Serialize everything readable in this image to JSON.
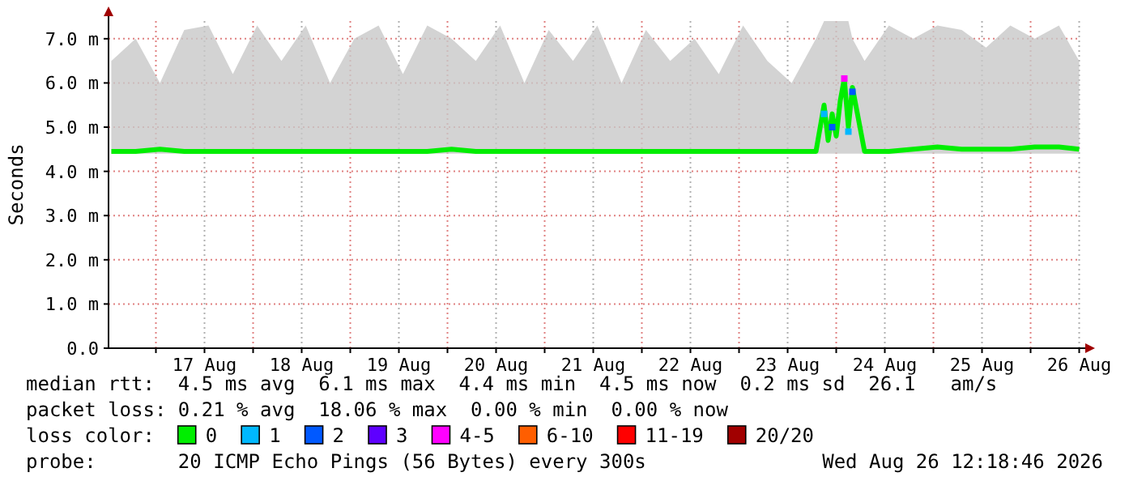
{
  "chart_data": {
    "type": "line",
    "ylabel": "Seconds",
    "legend_title": "loss color:",
    "legend": "bottom",
    "grid": true,
    "marker": "none",
    "line_style": "solid",
    "xlim": [
      "2026-08-16T12:18",
      "2026-08-26T12:18"
    ],
    "xticks": [
      {
        "value": "2026-08-17T00:00",
        "label": null
      },
      {
        "value": "2026-08-17T12:00",
        "label": "17 Aug"
      },
      {
        "value": "2026-08-18T00:00",
        "label": null
      },
      {
        "value": "2026-08-18T12:00",
        "label": "18 Aug"
      },
      {
        "value": "2026-08-19T00:00",
        "label": null
      },
      {
        "value": "2026-08-19T12:00",
        "label": "19 Aug"
      },
      {
        "value": "2026-08-20T00:00",
        "label": null
      },
      {
        "value": "2026-08-20T12:00",
        "label": "20 Aug"
      },
      {
        "value": "2026-08-21T00:00",
        "label": null
      },
      {
        "value": "2026-08-21T12:00",
        "label": "21 Aug"
      },
      {
        "value": "2026-08-22T00:00",
        "label": null
      },
      {
        "value": "2026-08-22T12:00",
        "label": "22 Aug"
      },
      {
        "value": "2026-08-23T00:00",
        "label": null
      },
      {
        "value": "2026-08-23T12:00",
        "label": "23 Aug"
      },
      {
        "value": "2026-08-24T00:00",
        "label": null
      },
      {
        "value": "2026-08-24T12:00",
        "label": "24 Aug"
      },
      {
        "value": "2026-08-25T00:00",
        "label": null
      },
      {
        "value": "2026-08-25T12:00",
        "label": "25 Aug"
      },
      {
        "value": "2026-08-26T00:00",
        "label": null
      },
      {
        "value": "2026-08-26T12:00",
        "label": "26 Aug"
      }
    ],
    "ylim": [
      0,
      7.4
    ],
    "yticks": [
      {
        "value": 0,
        "label": "0.0"
      },
      {
        "value": 1,
        "label": "1.0 m"
      },
      {
        "value": 2,
        "label": "2.0 m"
      },
      {
        "value": 3,
        "label": "3.0 m"
      },
      {
        "value": 4,
        "label": "4.0 m"
      },
      {
        "value": 5,
        "label": "5.0 m"
      },
      {
        "value": 6,
        "label": "6.0 m"
      },
      {
        "value": 7,
        "label": "7.0 m"
      }
    ],
    "x": [
      "2026-08-16T13:00",
      "2026-08-16T19:00",
      "2026-08-17T01:00",
      "2026-08-17T07:00",
      "2026-08-17T13:00",
      "2026-08-17T19:00",
      "2026-08-18T01:00",
      "2026-08-18T07:00",
      "2026-08-18T13:00",
      "2026-08-18T19:00",
      "2026-08-19T01:00",
      "2026-08-19T07:00",
      "2026-08-19T13:00",
      "2026-08-19T19:00",
      "2026-08-20T01:00",
      "2026-08-20T07:00",
      "2026-08-20T13:00",
      "2026-08-20T19:00",
      "2026-08-21T01:00",
      "2026-08-21T07:00",
      "2026-08-21T13:00",
      "2026-08-21T19:00",
      "2026-08-22T01:00",
      "2026-08-22T07:00",
      "2026-08-22T13:00",
      "2026-08-22T19:00",
      "2026-08-23T01:00",
      "2026-08-23T07:00",
      "2026-08-23T13:00",
      "2026-08-23T19:00",
      "2026-08-23T21:00",
      "2026-08-23T22:00",
      "2026-08-23T23:00",
      "2026-08-24T00:00",
      "2026-08-24T01:00",
      "2026-08-24T02:00",
      "2026-08-24T03:00",
      "2026-08-24T04:00",
      "2026-08-24T07:00",
      "2026-08-24T13:00",
      "2026-08-24T19:00",
      "2026-08-25T01:00",
      "2026-08-25T07:00",
      "2026-08-25T13:00",
      "2026-08-25T19:00",
      "2026-08-26T01:00",
      "2026-08-26T07:00",
      "2026-08-26T12:00"
    ],
    "series": [
      {
        "name": "0",
        "color": "#00ee00",
        "values": [
          4.45,
          4.45,
          4.5,
          4.45,
          4.45,
          4.45,
          4.45,
          4.45,
          4.45,
          4.45,
          4.45,
          4.45,
          4.45,
          4.45,
          4.5,
          4.45,
          4.45,
          4.45,
          4.45,
          4.45,
          4.45,
          4.45,
          4.45,
          4.45,
          4.45,
          4.45,
          4.45,
          4.45,
          4.45,
          4.45,
          5.5,
          4.7,
          5.3,
          4.8,
          5.6,
          6.1,
          5.0,
          5.9,
          4.45,
          4.45,
          4.5,
          4.55,
          4.5,
          4.5,
          4.5,
          4.55,
          4.55,
          4.5
        ],
        "lower": [
          4.4,
          4.4,
          4.4,
          4.4,
          4.4,
          4.4,
          4.4,
          4.4,
          4.4,
          4.4,
          4.4,
          4.4,
          4.4,
          4.4,
          4.4,
          4.4,
          4.4,
          4.4,
          4.4,
          4.4,
          4.4,
          4.4,
          4.4,
          4.4,
          4.4,
          4.4,
          4.4,
          4.4,
          4.4,
          4.4,
          4.4,
          4.4,
          4.4,
          4.4,
          4.4,
          4.4,
          4.4,
          4.4,
          4.4,
          4.4,
          4.4,
          4.4,
          4.4,
          4.4,
          4.4,
          4.4,
          4.4,
          4.4
        ],
        "upper": [
          6.5,
          7.0,
          6.0,
          7.2,
          7.3,
          6.2,
          7.3,
          6.5,
          7.3,
          6.0,
          7.0,
          7.3,
          6.2,
          7.3,
          7.0,
          6.5,
          7.3,
          6.0,
          7.2,
          6.5,
          7.3,
          6.0,
          7.2,
          6.5,
          7.0,
          6.2,
          7.3,
          6.5,
          6.0,
          7.0,
          7.4,
          7.4,
          7.4,
          7.4,
          7.4,
          7.4,
          7.4,
          7.0,
          6.5,
          7.3,
          7.0,
          7.3,
          7.2,
          6.8,
          7.3,
          7.0,
          7.3,
          6.5
        ]
      },
      {
        "name": "1",
        "type": "scatter",
        "marker": "square",
        "color": "#00b8ff",
        "x": [
          "2026-08-23T21:00",
          "2026-08-24T03:00"
        ],
        "values": [
          5.3,
          4.9
        ]
      },
      {
        "name": "2",
        "type": "scatter",
        "marker": "square",
        "color": "#0059ff",
        "x": [
          "2026-08-23T23:00",
          "2026-08-24T04:00"
        ],
        "values": [
          5.0,
          5.8
        ]
      },
      {
        "name": "3",
        "type": "scatter",
        "color": "#5e00ff",
        "values": [
          null,
          null,
          null,
          null,
          null,
          null,
          null,
          null,
          null,
          null,
          null,
          null,
          null,
          null,
          null,
          null,
          null,
          null,
          null,
          null,
          null,
          null,
          null,
          null,
          null,
          null,
          null,
          null,
          null,
          null,
          null,
          null,
          null,
          null,
          null,
          null,
          null,
          null,
          null,
          null,
          null,
          null,
          null,
          null,
          null,
          null,
          null,
          null
        ]
      },
      {
        "name": "4-5",
        "type": "scatter",
        "marker": "square",
        "color": "#ff00ff",
        "x": [
          "2026-08-24T02:00"
        ],
        "values": [
          6.1
        ]
      },
      {
        "name": "6-10",
        "type": "scatter",
        "color": "#ff5e00",
        "values": [
          null,
          null,
          null,
          null,
          null,
          null,
          null,
          null,
          null,
          null,
          null,
          null,
          null,
          null,
          null,
          null,
          null,
          null,
          null,
          null,
          null,
          null,
          null,
          null,
          null,
          null,
          null,
          null,
          null,
          null,
          null,
          null,
          null,
          null,
          null,
          null,
          null,
          null,
          null,
          null,
          null,
          null,
          null,
          null,
          null,
          null,
          null,
          null
        ]
      },
      {
        "name": "11-19",
        "type": "scatter",
        "color": "#ff0000",
        "values": [
          null,
          null,
          null,
          null,
          null,
          null,
          null,
          null,
          null,
          null,
          null,
          null,
          null,
          null,
          null,
          null,
          null,
          null,
          null,
          null,
          null,
          null,
          null,
          null,
          null,
          null,
          null,
          null,
          null,
          null,
          null,
          null,
          null,
          null,
          null,
          null,
          null,
          null,
          null,
          null,
          null,
          null,
          null,
          null,
          null,
          null,
          null,
          null
        ]
      },
      {
        "name": "20/20",
        "type": "scatter",
        "color": "#a10000",
        "values": [
          null,
          null,
          null,
          null,
          null,
          null,
          null,
          null,
          null,
          null,
          null,
          null,
          null,
          null,
          null,
          null,
          null,
          null,
          null,
          null,
          null,
          null,
          null,
          null,
          null,
          null,
          null,
          null,
          null,
          null,
          null,
          null,
          null,
          null,
          null,
          null,
          null,
          null,
          null,
          null,
          null,
          null,
          null,
          null,
          null,
          null,
          null,
          null
        ]
      }
    ],
    "annotations": [
      "median rtt:  4.5 ms avg  6.1 ms max  4.4 ms min  4.5 ms now  0.2 ms sd  26.1   am/s",
      "packet loss: 0.21 % avg  18.06 % max  0.00 % min  0.00 % now",
      "probe:       20 ICMP Echo Pings (56 Bytes) every 300s",
      "Wed Aug 26 12:18:46 2026"
    ]
  }
}
